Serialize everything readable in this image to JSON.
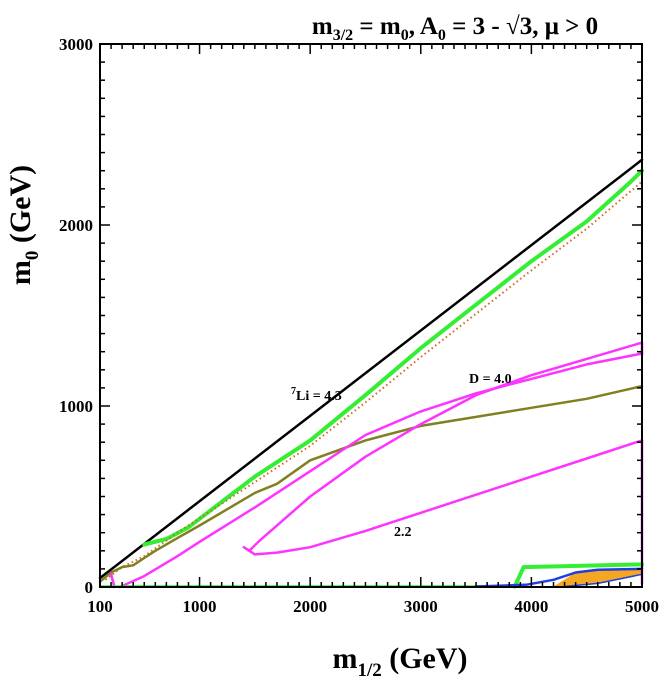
{
  "chart_data": {
    "type": "line",
    "title": "m3/2 = m0, A0 = 3 - √3,  μ > 0",
    "xlabel": "m1/2 (GeV)",
    "ylabel": "m0 (GeV)",
    "xlim": [
      100,
      5000
    ],
    "ylim": [
      0,
      3000
    ],
    "x_ticks": [
      "100",
      "1000",
      "2000",
      "3000",
      "4000",
      "5000"
    ],
    "y_ticks": [
      "0",
      "1000",
      "2000",
      "3000"
    ],
    "grid": false,
    "annotations": [
      {
        "text": "7Li = 4.3",
        "x": 1800,
        "y": 1080
      },
      {
        "text": "D = 4.0",
        "x": 3700,
        "y": 1150
      },
      {
        "text": "2.2",
        "x": 2900,
        "y": 290
      }
    ],
    "series": [
      {
        "color": "#000000",
        "style": "solid",
        "width": 2.5,
        "x": [
          100,
          5000
        ],
        "y": [
          50,
          2360
        ]
      },
      {
        "color": "#33ee33",
        "style": "solid",
        "width": 4,
        "x": [
          500,
          700,
          900,
          1200,
          1500,
          2000,
          2500,
          3000,
          3500,
          4000,
          4500,
          4900,
          5000
        ],
        "y": [
          235,
          265,
          330,
          470,
          610,
          810,
          1060,
          1320,
          1560,
          1800,
          2020,
          2240,
          2300
        ]
      },
      {
        "color": "#d2691e",
        "style": "dotted",
        "width": 2,
        "x": [
          150,
          300,
          500,
          800,
          1000,
          1500,
          2000,
          2500,
          3000,
          3500,
          4000,
          4500,
          5000
        ],
        "y": [
          40,
          110,
          170,
          300,
          380,
          580,
          780,
          1020,
          1270,
          1510,
          1750,
          1980,
          2240
        ]
      },
      {
        "color": "#808020",
        "style": "solid",
        "width": 2.5,
        "x": [
          100,
          200,
          300,
          400,
          500,
          600,
          800,
          1000,
          1500,
          1700,
          2000,
          2500,
          3000,
          3500,
          4000,
          4500,
          5000
        ],
        "y": [
          30,
          80,
          110,
          120,
          160,
          200,
          270,
          340,
          520,
          570,
          700,
          810,
          890,
          940,
          990,
          1040,
          1110
        ]
      },
      {
        "color": "#ff33ff",
        "style": "solid",
        "width": 2.5,
        "x": [
          280,
          500,
          800,
          1000,
          1500,
          2000,
          2500,
          3000,
          3500,
          4000,
          4500,
          5000
        ],
        "y": [
          0,
          60,
          170,
          250,
          440,
          640,
          840,
          970,
          1070,
          1150,
          1230,
          1290
        ]
      },
      {
        "color": "#ff33ff",
        "style": "solid",
        "width": 2.5,
        "x": [
          1450,
          1550,
          2000,
          2500,
          3000,
          3500,
          4000,
          4500,
          5000,
          5000
        ],
        "y": [
          200,
          260,
          500,
          720,
          900,
          1060,
          1170,
          1260,
          1350,
          1280
        ]
      },
      {
        "color": "#ff33ff",
        "style": "solid",
        "width": 2.5,
        "x": [
          1400,
          1500,
          1700,
          2000,
          2500,
          3000,
          3500,
          4000,
          4500,
          5000
        ],
        "y": [
          220,
          180,
          190,
          220,
          310,
          410,
          510,
          610,
          710,
          810
        ]
      },
      {
        "color": "#ff33ff",
        "style": "solid",
        "width": 2.5,
        "x": [
          5000,
          5000
        ],
        "y": [
          810,
          20
        ]
      },
      {
        "color": "#ff33ff",
        "style": "solid",
        "width": 2.5,
        "x": [
          200,
          230
        ],
        "y": [
          70,
          0
        ]
      },
      {
        "color": "#33ee33",
        "style": "solid",
        "width": 2.5,
        "x": [
          100,
          3850
        ],
        "y": [
          3,
          3
        ]
      },
      {
        "color": "#33ee33",
        "style": "solid",
        "width": 4,
        "x": [
          3850,
          3930,
          5000
        ],
        "y": [
          3,
          110,
          125
        ]
      },
      {
        "color": "#1f3fdd",
        "style": "solid",
        "width": 2.5,
        "x": [
          3500,
          3950,
          4200,
          4400,
          4600,
          5000
        ],
        "y": [
          3,
          12,
          40,
          80,
          95,
          100
        ]
      },
      {
        "color": "#1f3fdd",
        "style": "solid",
        "width": 1.5,
        "x": [
          4300,
          4600,
          4800,
          5000
        ],
        "y": [
          3,
          20,
          45,
          70
        ]
      }
    ],
    "areas": [
      {
        "color": "#f5a623",
        "x": [
          4200,
          4400,
          4600,
          5000,
          5000,
          4600,
          4300,
          4200
        ],
        "y": [
          3,
          80,
          95,
          100,
          70,
          20,
          3,
          3
        ]
      }
    ]
  }
}
